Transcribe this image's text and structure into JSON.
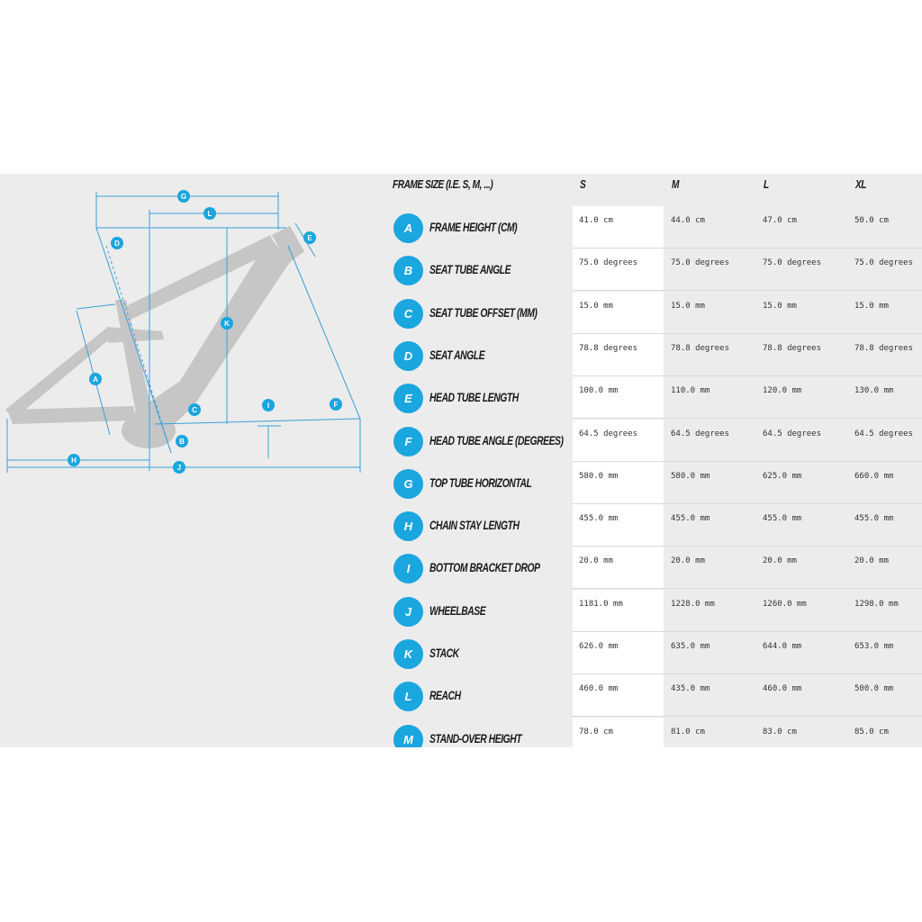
{
  "colors": {
    "accent": "#1aa6df",
    "panel_bg": "#ececec",
    "frame_gray": "#c4c4c4",
    "dimension_line": "#3aa0d8"
  },
  "diagram": {
    "markers": [
      "G",
      "L",
      "D",
      "E",
      "K",
      "A",
      "I",
      "F",
      "C",
      "B",
      "H",
      "J"
    ]
  },
  "table": {
    "headers": [
      "FRAME SIZE (I.E. S, M, ...)",
      "S",
      "M",
      "L",
      "XL"
    ],
    "rows": [
      {
        "key": "A",
        "label": "FRAME HEIGHT (CM)",
        "values": [
          "41.0 cm",
          "44.0 cm",
          "47.0 cm",
          "50.0 cm"
        ]
      },
      {
        "key": "B",
        "label": "SEAT TUBE ANGLE",
        "values": [
          "75.0 degrees",
          "75.0 degrees",
          "75.0 degrees",
          "75.0 degrees"
        ]
      },
      {
        "key": "C",
        "label": "SEAT TUBE OFFSET (MM)",
        "values": [
          "15.0 mm",
          "15.0 mm",
          "15.0 mm",
          "15.0 mm"
        ]
      },
      {
        "key": "D",
        "label": "SEAT ANGLE",
        "values": [
          "78.8 degrees",
          "78.8 degrees",
          "78.8 degrees",
          "78.8 degrees"
        ]
      },
      {
        "key": "E",
        "label": "HEAD TUBE LENGTH",
        "values": [
          "100.0 mm",
          "110.0 mm",
          "120.0 mm",
          "130.0 mm"
        ]
      },
      {
        "key": "F",
        "label": "HEAD TUBE ANGLE (DEGREES)",
        "values": [
          "64.5 degrees",
          "64.5 degrees",
          "64.5 degrees",
          "64.5 degrees"
        ]
      },
      {
        "key": "G",
        "label": "TOP TUBE HORIZONTAL",
        "values": [
          "580.0 mm",
          "580.0 mm",
          "625.0 mm",
          "660.0 mm"
        ]
      },
      {
        "key": "H",
        "label": "CHAIN STAY LENGTH",
        "values": [
          "455.0 mm",
          "455.0 mm",
          "455.0 mm",
          "455.0 mm"
        ]
      },
      {
        "key": "I",
        "label": "BOTTOM BRACKET DROP",
        "values": [
          "20.0 mm",
          "20.0 mm",
          "20.0 mm",
          "20.0 mm"
        ]
      },
      {
        "key": "J",
        "label": "WHEELBASE",
        "values": [
          "1181.0 mm",
          "1228.0 mm",
          "1260.0 mm",
          "1298.0 mm"
        ]
      },
      {
        "key": "K",
        "label": "STACK",
        "values": [
          "626.0 mm",
          "635.0 mm",
          "644.0 mm",
          "653.0 mm"
        ]
      },
      {
        "key": "L",
        "label": "REACH",
        "values": [
          "460.0 mm",
          "435.0 mm",
          "460.0 mm",
          "500.0 mm"
        ]
      },
      {
        "key": "M",
        "label": "STAND-OVER HEIGHT",
        "values": [
          "78.0 cm",
          "81.0 cm",
          "83.0 cm",
          "85.0 cm"
        ]
      }
    ]
  }
}
